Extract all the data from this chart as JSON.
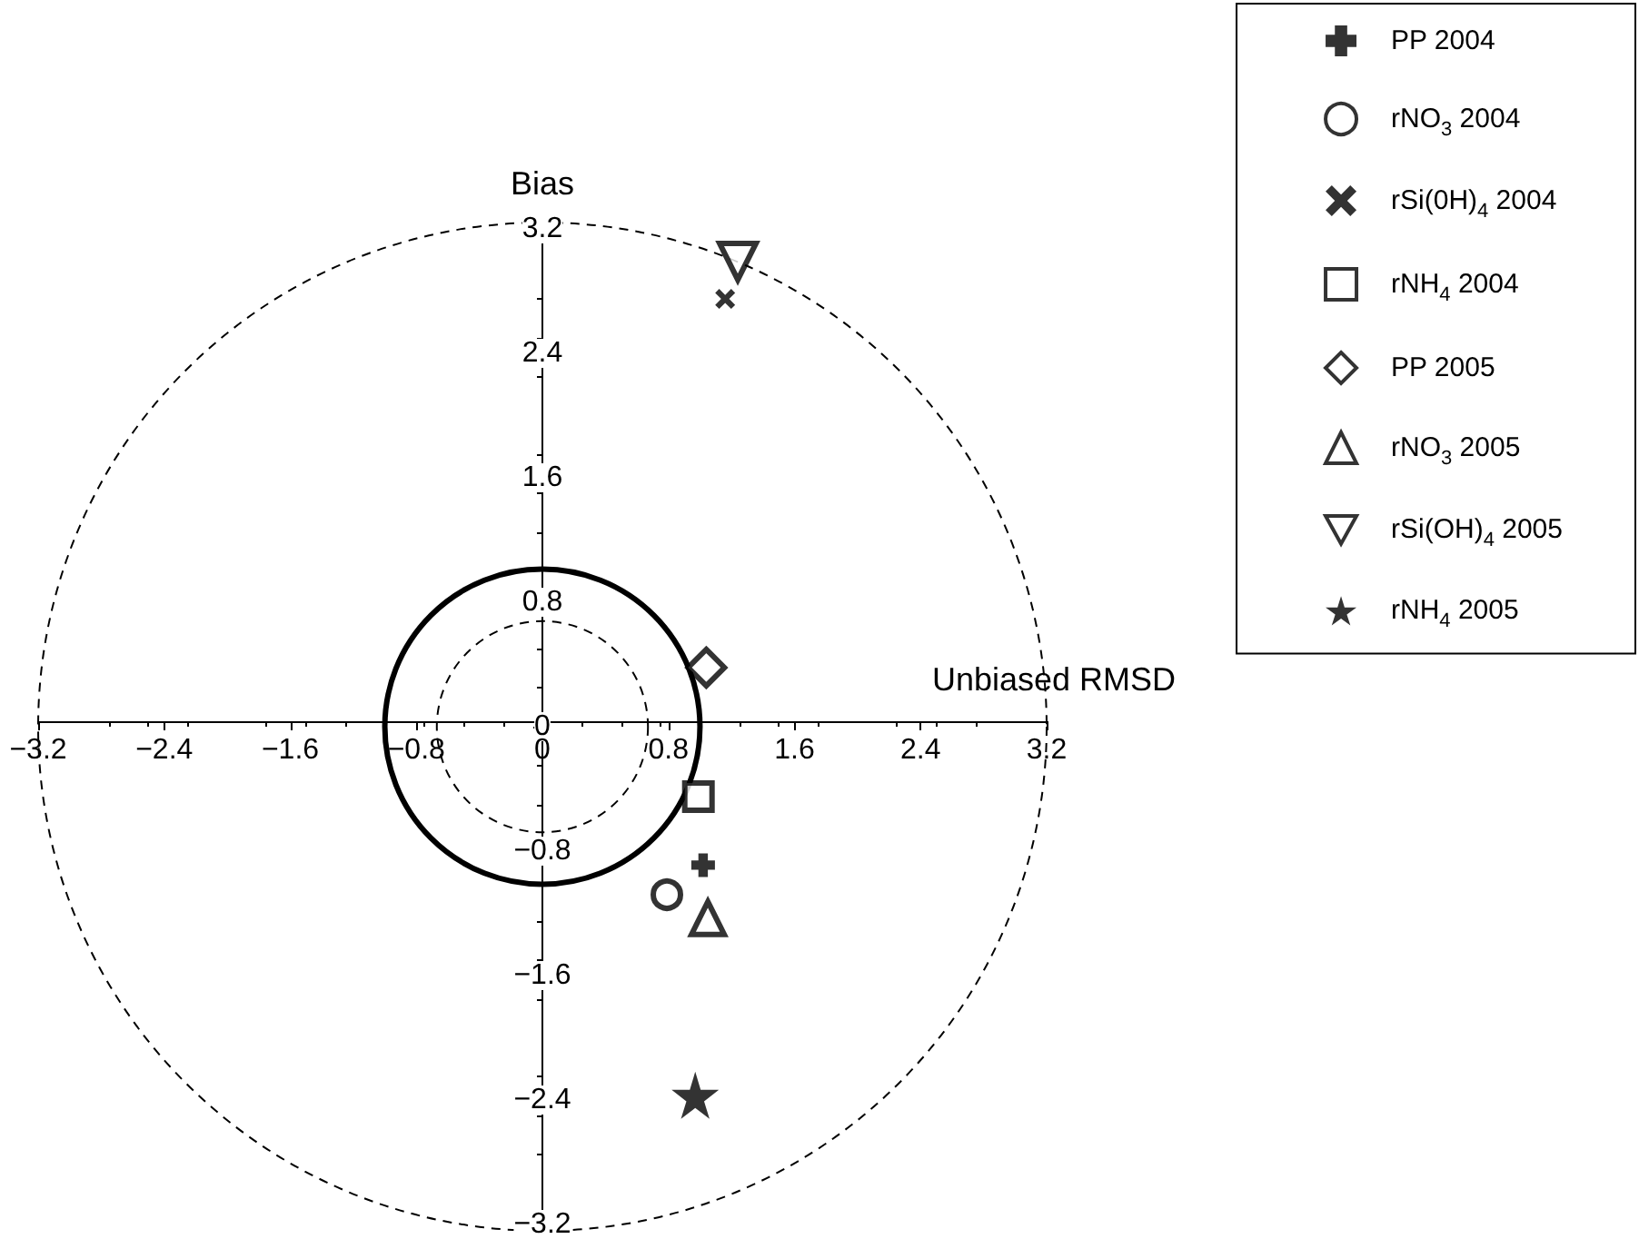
{
  "chart_data": {
    "type": "scatter",
    "xlabel": "Unbiased RMSD",
    "ylabel": "Bias",
    "xlim": [
      -3.2,
      3.2
    ],
    "ylim": [
      -3.2,
      3.2
    ],
    "xticks": [
      {
        "value": -3.2,
        "label": "−3.2"
      },
      {
        "value": -2.4,
        "label": "−2.4"
      },
      {
        "value": -1.6,
        "label": "−1.6"
      },
      {
        "value": -0.8,
        "label": "−0.8"
      },
      0,
      0.8,
      1.6,
      2.4,
      3.2
    ],
    "yticks": [
      {
        "value": -3.2,
        "label": "−3.2"
      },
      {
        "value": -2.4,
        "label": "−2.4"
      },
      {
        "value": -1.6,
        "label": "−1.6"
      },
      {
        "value": -0.8,
        "label": "−0.8"
      },
      0,
      0.8,
      1.6,
      2.4,
      3.2
    ],
    "grid": false,
    "legend": "top right",
    "series": [
      {
        "name": "PP 2004",
        "color": "#000000",
        "marker": "cross",
        "x": [
          1.02
        ],
        "values": [
          -0.89
        ]
      },
      {
        "name": "rNO$_{3}$ 2004",
        "color": "#000000",
        "marker": "circle",
        "x": [
          0.79
        ],
        "values": [
          -1.08
        ]
      },
      {
        "name": "rSi(0H)$_{4}$ 2004",
        "color": "#000000",
        "marker": "x",
        "x": [
          1.16
        ],
        "values": [
          2.75
        ]
      },
      {
        "name": "rNH$_{4}$ 2004",
        "color": "#000000",
        "marker": "square",
        "x": [
          0.99
        ],
        "values": [
          -0.45
        ]
      },
      {
        "name": "PP 2005",
        "color": "#000000",
        "marker": "diamond",
        "x": [
          1.04
        ],
        "values": [
          0.38
        ]
      },
      {
        "name": "rNO$_{3}$ 2005",
        "color": "#000000",
        "marker": "triangle",
        "x": [
          1.05
        ],
        "values": [
          -1.23
        ]
      },
      {
        "name": "rSi(OH)$_{4}$ 2005",
        "color": "#000000",
        "marker": "triangle-down",
        "x": [
          1.24
        ],
        "values": [
          2.99
        ]
      },
      {
        "name": "rNH$_{4}$ 2005",
        "color": "#000000",
        "marker": "star",
        "x": [
          0.97
        ],
        "values": [
          -2.37
        ]
      }
    ]
  }
}
